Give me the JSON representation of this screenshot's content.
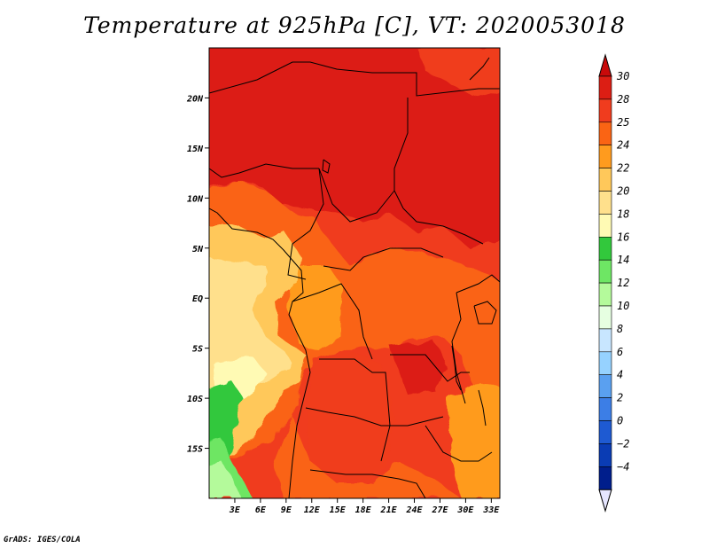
{
  "title": "Temperature at 925hPa [C], VT: 2020053018",
  "credit": "GrADS: IGES/COLA",
  "map": {
    "lon_range": [
      0,
      34
    ],
    "lat_range": [
      -20,
      25
    ],
    "lat_ticks": [
      {
        "lat": 20,
        "label": "20N"
      },
      {
        "lat": 15,
        "label": "15N"
      },
      {
        "lat": 10,
        "label": "10N"
      },
      {
        "lat": 5,
        "label": "5N"
      },
      {
        "lat": 0,
        "label": "EQ"
      },
      {
        "lat": -5,
        "label": "5S"
      },
      {
        "lat": -10,
        "label": "10S"
      },
      {
        "lat": -15,
        "label": "15S"
      }
    ],
    "lon_ticks": [
      {
        "lon": 3,
        "label": "3E"
      },
      {
        "lon": 6,
        "label": "6E"
      },
      {
        "lon": 9,
        "label": "9E"
      },
      {
        "lon": 12,
        "label": "12E"
      },
      {
        "lon": 15,
        "label": "15E"
      },
      {
        "lon": 18,
        "label": "18E"
      },
      {
        "lon": 21,
        "label": "21E"
      },
      {
        "lon": 24,
        "label": "24E"
      },
      {
        "lon": 27,
        "label": "27E"
      },
      {
        "lon": 30,
        "label": "30E"
      },
      {
        "lon": 33,
        "label": "33E"
      }
    ]
  },
  "colorbar": {
    "levels": [
      {
        "label": "30",
        "color": "#dc1e14"
      },
      {
        "label": "28",
        "color": "#f03c1e"
      },
      {
        "label": "25",
        "color": "#fa6414"
      },
      {
        "label": "24",
        "color": "#ff9b1e"
      },
      {
        "label": "22",
        "color": "#ffc85a"
      },
      {
        "label": "20",
        "color": "#ffe08c"
      },
      {
        "label": "18",
        "color": "#fffab4"
      },
      {
        "label": "16",
        "color": "#32c83c"
      },
      {
        "label": "14",
        "color": "#6ee664"
      },
      {
        "label": "12",
        "color": "#b4fa9b"
      },
      {
        "label": "10",
        "color": "#e6ffe1"
      },
      {
        "label": "8",
        "color": "#c8e6ff"
      },
      {
        "label": "6",
        "color": "#96d2ff"
      },
      {
        "label": "4",
        "color": "#5aa0f0"
      },
      {
        "label": "2",
        "color": "#3c7ee6"
      },
      {
        "label": "0",
        "color": "#1e5ad2"
      },
      {
        "label": "−2",
        "color": "#0a3cb4"
      },
      {
        "label": "−4",
        "color": "#001e8c"
      }
    ],
    "top_color": "#c80a0a",
    "bottom_color": "#e6e6ff"
  }
}
